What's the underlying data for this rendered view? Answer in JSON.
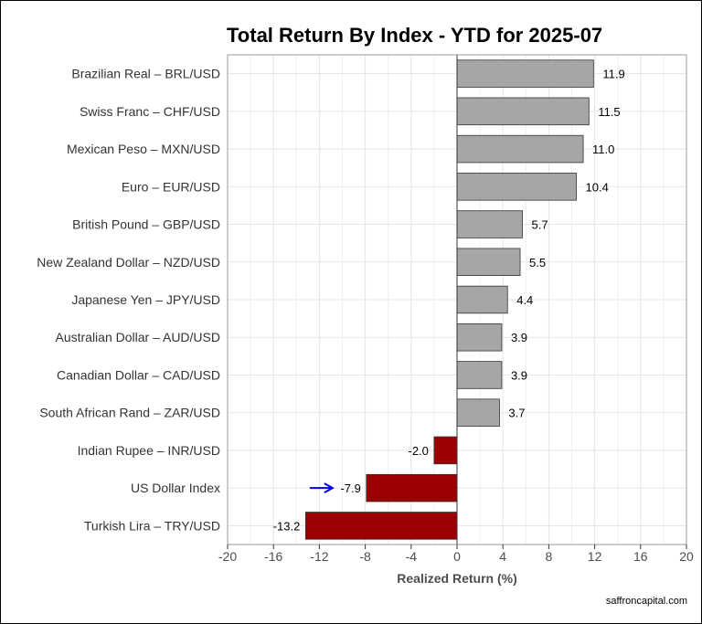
{
  "chart_data": {
    "type": "bar",
    "orientation": "horizontal",
    "title": "Total Return By Index - YTD for 2025-07",
    "xlabel": "Realized Return (%)",
    "ylabel": "",
    "xlim": [
      -20,
      20
    ],
    "x_ticks": [
      -20,
      -16,
      -12,
      -8,
      -4,
      0,
      4,
      8,
      12,
      16,
      20
    ],
    "grid": true,
    "categories": [
      "Brazilian Real – BRL/USD",
      "Swiss Franc – CHF/USD",
      "Mexican Peso – MXN/USD",
      "Euro – EUR/USD",
      "British Pound – GBP/USD",
      "New Zealand Dollar – NZD/USD",
      "Japanese Yen – JPY/USD",
      "Australian Dollar – AUD/USD",
      "Canadian Dollar – CAD/USD",
      "South African Rand – ZAR/USD",
      "Indian Rupee – INR/USD",
      "US Dollar Index",
      "Turkish Lira – TRY/USD"
    ],
    "values": [
      11.9,
      11.5,
      11.0,
      10.4,
      5.7,
      5.5,
      4.4,
      3.9,
      3.9,
      3.7,
      -2.0,
      -7.9,
      -13.2
    ],
    "value_labels": [
      "11.9",
      "11.5",
      "11.0",
      "10.4",
      "5.7",
      "5.5",
      "4.4",
      "3.9",
      "3.9",
      "3.7",
      "-2.0",
      "-7.9",
      "-13.2"
    ],
    "highlight_category": "US Dollar Index",
    "colors": {
      "positive": "#a6a6a6",
      "negative": "#9c0000",
      "arrow": "#0000ee",
      "grid": "#e5e5e5",
      "panel_border": "#999999"
    }
  },
  "footer": {
    "source": "saffroncapital.com"
  }
}
